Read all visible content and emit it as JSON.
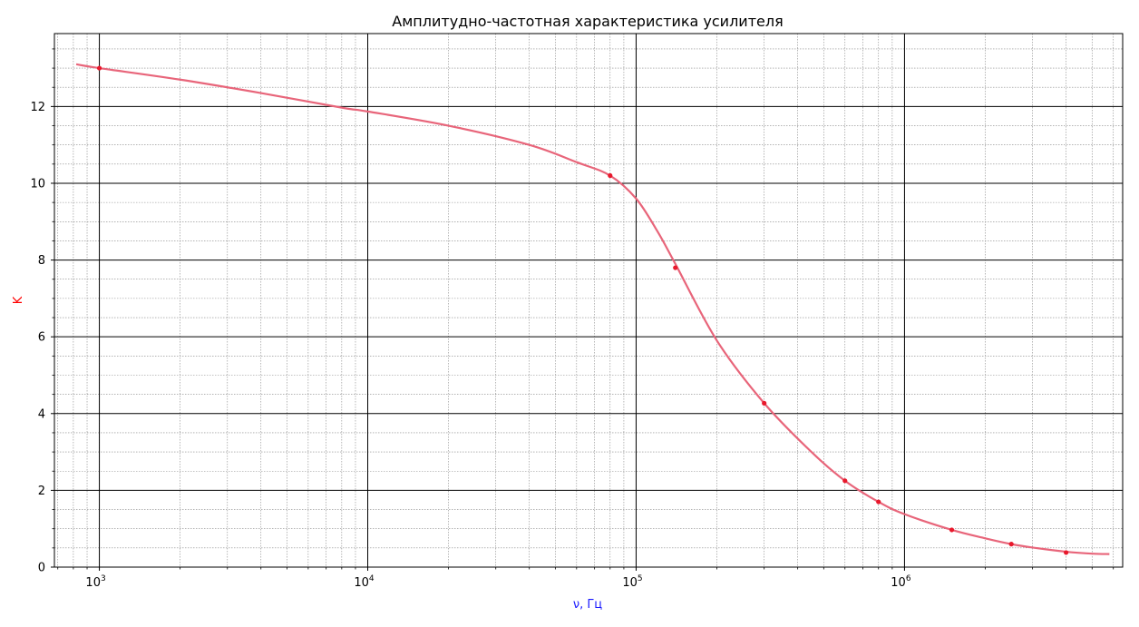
{
  "chart_data": {
    "type": "line",
    "title": "Амплитудно-частотная характеристика усилителя",
    "xlabel": "ν, Гц",
    "ylabel": "K",
    "xscale": "log",
    "xlim": [
      680,
      6500000
    ],
    "ylim": [
      0,
      13.9
    ],
    "grid": true,
    "xticks": [
      {
        "value": 1000,
        "base": "10",
        "exp": "3"
      },
      {
        "value": 10000,
        "base": "10",
        "exp": "4"
      },
      {
        "value": 100000,
        "base": "10",
        "exp": "5"
      },
      {
        "value": 1000000,
        "base": "10",
        "exp": "6"
      }
    ],
    "yticks": [
      {
        "value": 0,
        "label": "0"
      },
      {
        "value": 2,
        "label": "2"
      },
      {
        "value": 4,
        "label": "4"
      },
      {
        "value": 6,
        "label": "6"
      },
      {
        "value": 8,
        "label": "8"
      },
      {
        "value": 10,
        "label": "10"
      },
      {
        "value": 12,
        "label": "12"
      }
    ],
    "colors": {
      "line": "#e8657a",
      "points": "#e8192c",
      "xlabel": "#1a1aff",
      "ylabel": "#ff0000",
      "major_grid": "#000000",
      "minor_grid": "#888888"
    },
    "series": [
      {
        "kind": "points",
        "x": [
          1000,
          80000,
          140000,
          300000,
          600000,
          800000,
          1500000,
          2500000,
          4000000
        ],
        "y": [
          13.0,
          10.2,
          7.8,
          4.27,
          2.25,
          1.7,
          0.97,
          0.6,
          0.38
        ]
      },
      {
        "kind": "fit-line",
        "x": [
          820,
          1000,
          2000,
          4000,
          8000,
          10000,
          20000,
          40000,
          60000,
          80000,
          100000,
          120000,
          140000,
          200000,
          300000,
          450000,
          600000,
          800000,
          1000000,
          1500000,
          2000000,
          2500000,
          3000000,
          4000000,
          5000000,
          5800000
        ],
        "y": [
          13.1,
          13.0,
          12.7,
          12.35,
          11.97,
          11.87,
          11.5,
          11.0,
          10.55,
          10.2,
          9.6,
          8.75,
          7.9,
          5.9,
          4.27,
          3.0,
          2.25,
          1.7,
          1.38,
          0.97,
          0.75,
          0.6,
          0.51,
          0.4,
          0.35,
          0.34
        ]
      }
    ]
  }
}
